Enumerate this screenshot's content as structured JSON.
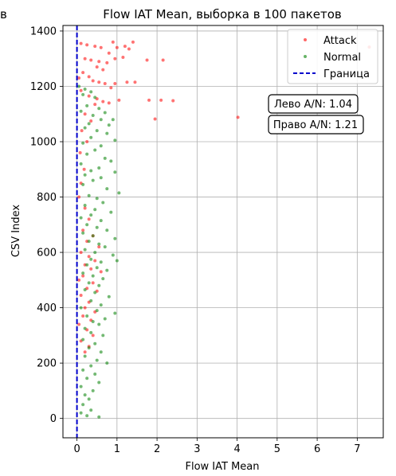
{
  "chart_data": {
    "type": "scatter",
    "title": "Flow IAT Mean, выборка в 100 пакетов",
    "truncated_title_fragment": "в",
    "xlabel": "Flow IAT Mean",
    "ylabel": "CSV Index",
    "xlim": [
      -0.35,
      7.65
    ],
    "ylim": [
      -70,
      1420
    ],
    "xticks": [
      0,
      1,
      2,
      3,
      4,
      5,
      6,
      7
    ],
    "yticks": [
      0,
      200,
      400,
      600,
      800,
      1000,
      1200,
      1400
    ],
    "grid": true,
    "legend": {
      "position": "top-right",
      "entries": [
        {
          "label": "Attack",
          "color": "#ff0000",
          "marker": "dot"
        },
        {
          "label": "Normal",
          "color": "#008000",
          "marker": "dot"
        },
        {
          "label": "Граница",
          "color": "#0000cc",
          "marker": "dashed-line"
        }
      ]
    },
    "boundary_x": 0,
    "annotations": [
      {
        "text": "Лево A/N: 1.04"
      },
      {
        "text": "Право A/N: 1.21"
      }
    ],
    "series": [
      {
        "name": "Attack",
        "color": "#ff0000",
        "points": [
          [
            0.1,
            1355
          ],
          [
            0.25,
            1350
          ],
          [
            0.45,
            1345
          ],
          [
            0.6,
            1340
          ],
          [
            0.9,
            1360
          ],
          [
            1.0,
            1340
          ],
          [
            1.2,
            1345
          ],
          [
            1.4,
            1360
          ],
          [
            1.3,
            1335
          ],
          [
            0.8,
            1320
          ],
          [
            0.2,
            1300
          ],
          [
            0.35,
            1295
          ],
          [
            0.55,
            1290
          ],
          [
            0.75,
            1285
          ],
          [
            0.95,
            1300
          ],
          [
            1.15,
            1305
          ],
          [
            1.75,
            1295
          ],
          [
            2.15,
            1295
          ],
          [
            0.5,
            1270
          ],
          [
            0.65,
            1260
          ],
          [
            0.15,
            1250
          ],
          [
            0.3,
            1235
          ],
          [
            0.05,
            1230
          ],
          [
            0.4,
            1220
          ],
          [
            0.55,
            1215
          ],
          [
            0.7,
            1210
          ],
          [
            0.95,
            1210
          ],
          [
            1.25,
            1215
          ],
          [
            1.45,
            1215
          ],
          [
            0.85,
            1195
          ],
          [
            0.1,
            1185
          ],
          [
            0.3,
            1165
          ],
          [
            0.5,
            1155
          ],
          [
            0.65,
            1145
          ],
          [
            0.8,
            1140
          ],
          [
            1.05,
            1150
          ],
          [
            1.8,
            1150
          ],
          [
            2.1,
            1150
          ],
          [
            2.4,
            1148
          ],
          [
            0.45,
            1135
          ],
          [
            1.95,
            1082
          ],
          [
            4.02,
            1088
          ],
          [
            7.3,
            1342
          ],
          [
            0.2,
            1100
          ],
          [
            0.35,
            1075
          ],
          [
            0.12,
            1040
          ],
          [
            0.25,
            1000
          ],
          [
            0.08,
            960
          ],
          [
            0.18,
            900
          ],
          [
            0.1,
            850
          ],
          [
            0.05,
            800
          ],
          [
            0.2,
            760
          ],
          [
            0.3,
            720
          ],
          [
            0.15,
            680
          ],
          [
            0.4,
            660
          ],
          [
            0.25,
            640
          ],
          [
            0.55,
            620
          ],
          [
            0.1,
            600
          ],
          [
            0.3,
            585
          ],
          [
            0.45,
            570
          ],
          [
            0.2,
            555
          ],
          [
            0.35,
            540
          ],
          [
            0.6,
            530
          ],
          [
            0.15,
            515
          ],
          [
            0.05,
            500
          ],
          [
            0.4,
            490
          ],
          [
            0.25,
            470
          ],
          [
            0.5,
            460
          ],
          [
            0.1,
            445
          ],
          [
            0.3,
            420
          ],
          [
            0.2,
            400
          ],
          [
            0.45,
            385
          ],
          [
            0.15,
            370
          ],
          [
            0.35,
            355
          ],
          [
            0.05,
            340
          ],
          [
            0.25,
            320
          ],
          [
            0.4,
            300
          ],
          [
            0.1,
            280
          ],
          [
            0.3,
            260
          ],
          [
            0.2,
            240
          ]
        ]
      },
      {
        "name": "Normal",
        "color": "#008000",
        "points": [
          [
            0.05,
            1200
          ],
          [
            0.2,
            1190
          ],
          [
            0.35,
            1180
          ],
          [
            0.15,
            1170
          ],
          [
            0.45,
            1160
          ],
          [
            0.25,
            1130
          ],
          [
            0.55,
            1120
          ],
          [
            0.1,
            1110
          ],
          [
            0.7,
            1105
          ],
          [
            0.4,
            1095
          ],
          [
            0.6,
            1080
          ],
          [
            0.9,
            1080
          ],
          [
            0.3,
            1065
          ],
          [
            0.8,
            1060
          ],
          [
            0.2,
            1050
          ],
          [
            0.5,
            1040
          ],
          [
            0.75,
            1030
          ],
          [
            0.35,
            1015
          ],
          [
            0.95,
            1005
          ],
          [
            0.15,
            995
          ],
          [
            0.6,
            985
          ],
          [
            0.45,
            970
          ],
          [
            0.25,
            955
          ],
          [
            0.7,
            940
          ],
          [
            0.85,
            930
          ],
          [
            0.1,
            920
          ],
          [
            0.55,
            905
          ],
          [
            0.35,
            895
          ],
          [
            0.95,
            890
          ],
          [
            0.2,
            880
          ],
          [
            0.6,
            870
          ],
          [
            0.4,
            860
          ],
          [
            0.15,
            845
          ],
          [
            0.75,
            830
          ],
          [
            1.05,
            815
          ],
          [
            0.3,
            805
          ],
          [
            0.5,
            795
          ],
          [
            0.65,
            780
          ],
          [
            0.2,
            770
          ],
          [
            0.45,
            755
          ],
          [
            0.85,
            745
          ],
          [
            0.35,
            735
          ],
          [
            0.1,
            725
          ],
          [
            0.6,
            715
          ],
          [
            0.25,
            700
          ],
          [
            0.5,
            690
          ],
          [
            0.75,
            680
          ],
          [
            0.15,
            670
          ],
          [
            0.4,
            660
          ],
          [
            0.95,
            650
          ],
          [
            0.3,
            640
          ],
          [
            0.55,
            630
          ],
          [
            0.7,
            620
          ],
          [
            0.2,
            610
          ],
          [
            0.45,
            600
          ],
          [
            0.9,
            590
          ],
          [
            0.35,
            575
          ],
          [
            0.6,
            565
          ],
          [
            1.0,
            570
          ],
          [
            0.25,
            555
          ],
          [
            0.5,
            545
          ],
          [
            0.75,
            535
          ],
          [
            0.15,
            525
          ],
          [
            0.4,
            515
          ],
          [
            0.65,
            505
          ],
          [
            0.3,
            490
          ],
          [
            0.55,
            480
          ],
          [
            0.2,
            465
          ],
          [
            0.45,
            455
          ],
          [
            0.8,
            440
          ],
          [
            0.35,
            425
          ],
          [
            0.6,
            410
          ],
          [
            0.1,
            400
          ],
          [
            0.5,
            390
          ],
          [
            0.95,
            380
          ],
          [
            0.25,
            370
          ],
          [
            0.7,
            360
          ],
          [
            0.4,
            350
          ],
          [
            0.55,
            340
          ],
          [
            0.2,
            325
          ],
          [
            0.35,
            310
          ],
          [
            0.65,
            300
          ],
          [
            0.15,
            285
          ],
          [
            0.45,
            270
          ],
          [
            0.3,
            255
          ],
          [
            0.6,
            240
          ],
          [
            0.2,
            225
          ],
          [
            0.5,
            210
          ],
          [
            0.75,
            200
          ],
          [
            0.35,
            190
          ],
          [
            0.15,
            175
          ],
          [
            0.45,
            160
          ],
          [
            0.25,
            145
          ],
          [
            0.55,
            130
          ],
          [
            0.1,
            115
          ],
          [
            0.4,
            100
          ],
          [
            0.2,
            85
          ],
          [
            0.3,
            70
          ],
          [
            0.15,
            50
          ],
          [
            0.35,
            30
          ],
          [
            0.55,
            5
          ],
          [
            0.1,
            20
          ],
          [
            0.25,
            10
          ]
        ]
      }
    ]
  }
}
